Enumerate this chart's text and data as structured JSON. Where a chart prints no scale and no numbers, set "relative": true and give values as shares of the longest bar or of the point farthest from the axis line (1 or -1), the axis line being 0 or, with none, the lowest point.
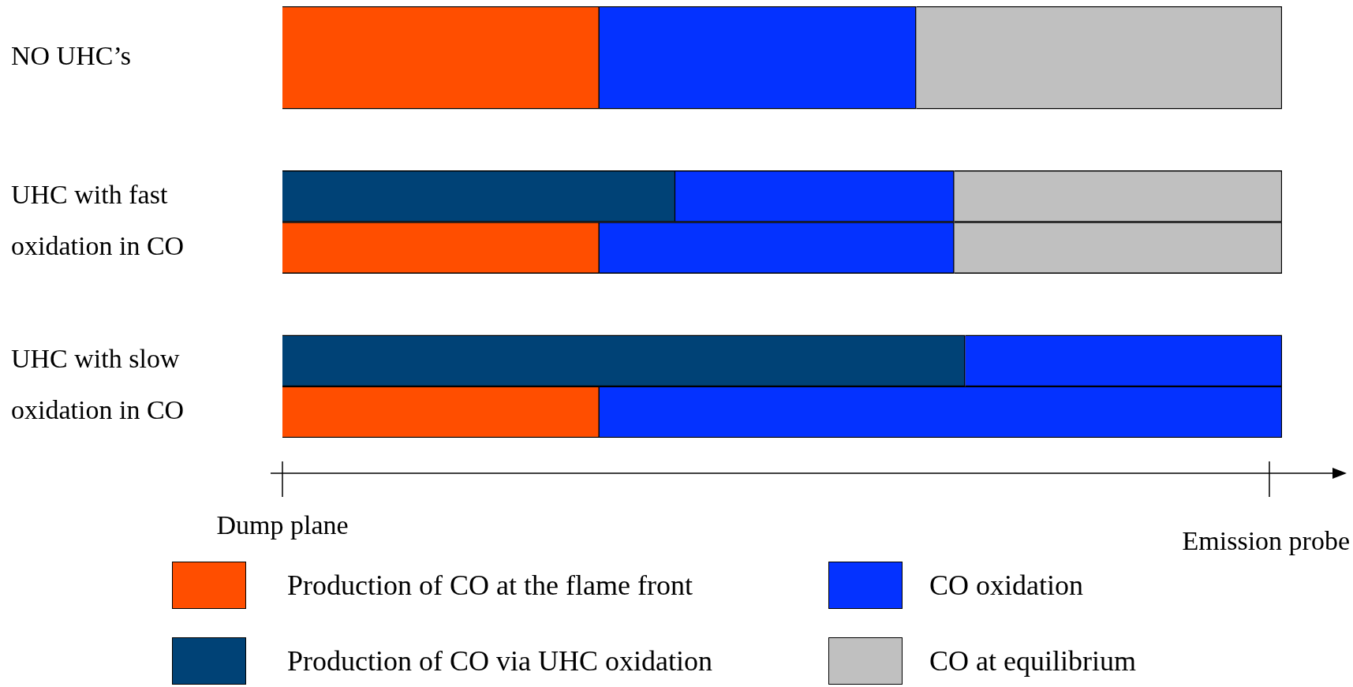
{
  "chart_data": {
    "type": "bar",
    "orientation": "horizontal",
    "stacked": true,
    "relative": true,
    "legend": "bottom",
    "categories": [
      "NO UHC’s",
      "UHC with fast",
      "oxidation in CO",
      "UHC with slow",
      "oxidation in CO"
    ],
    "series": [
      {
        "name": "Production of CO at the flame front",
        "color": "#ff4e00",
        "values": [
          0.317,
          null,
          0.317,
          null,
          0.317
        ]
      },
      {
        "name": "Production of CO via UHC oxidation",
        "color": "#004276",
        "values": [
          null,
          0.393,
          null,
          0.683,
          null
        ]
      },
      {
        "name": "CO oxidation",
        "color": "#0432ff",
        "values": [
          0.317,
          0.279,
          0.355,
          0.317,
          0.683
        ]
      },
      {
        "name": "CO at equilibrium",
        "color": "#c0c0c0",
        "values": [
          0.366,
          0.328,
          0.328,
          null,
          null
        ]
      }
    ],
    "annotations": [
      "Dump plane",
      "Emission probe"
    ]
  }
}
